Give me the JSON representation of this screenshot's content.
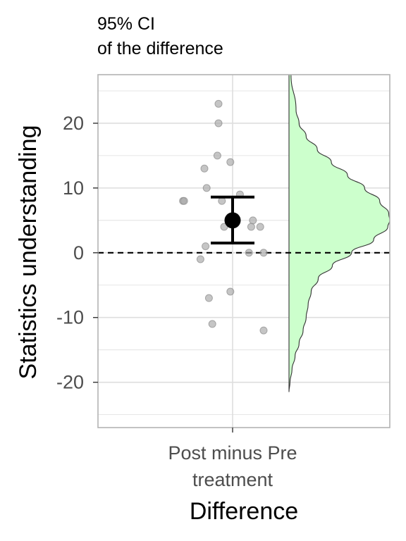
{
  "chart_data": {
    "type": "scatter",
    "title_lines": [
      "95% CI",
      "of the difference"
    ],
    "xlabel": "Difference",
    "ylabel": "Statistics understanding",
    "x_category_lines": [
      "Post minus Pre",
      "treatment"
    ],
    "ylim": [
      -27,
      27.5
    ],
    "y_ticks": [
      -20,
      -10,
      0,
      10,
      20
    ],
    "y_tick_labels": [
      "-20",
      "-10",
      "0",
      "10",
      "20"
    ],
    "grid": true,
    "reference_line": 0,
    "points": [
      {
        "x": -0.25,
        "y": 23
      },
      {
        "x": -0.25,
        "y": 20
      },
      {
        "x": -0.27,
        "y": 15
      },
      {
        "x": -0.04,
        "y": 14
      },
      {
        "x": -0.5,
        "y": 13
      },
      {
        "x": -0.46,
        "y": 10
      },
      {
        "x": 0.13,
        "y": 9
      },
      {
        "x": -0.88,
        "y": 8
      },
      {
        "x": -0.86,
        "y": 8
      },
      {
        "x": -0.19,
        "y": 8
      },
      {
        "x": 0.36,
        "y": 5
      },
      {
        "x": -0.15,
        "y": 4
      },
      {
        "x": 0.33,
        "y": 4
      },
      {
        "x": 0.49,
        "y": 4
      },
      {
        "x": -0.48,
        "y": 1
      },
      {
        "x": 0.29,
        "y": 0
      },
      {
        "x": 0.55,
        "y": 0
      },
      {
        "x": -0.57,
        "y": -1
      },
      {
        "x": -0.04,
        "y": -6
      },
      {
        "x": -0.42,
        "y": -7
      },
      {
        "x": -0.36,
        "y": -11
      },
      {
        "x": 0.55,
        "y": -12
      }
    ],
    "estimate": {
      "mean": 5,
      "ci_lower": 1.5,
      "ci_upper": 8.6
    },
    "density": {
      "y": [
        27.5,
        22,
        20,
        18,
        16,
        14,
        12,
        10,
        8,
        6,
        5,
        4,
        2,
        0,
        -2,
        -4,
        -6,
        -8,
        -10,
        -12,
        -14,
        -16,
        -18,
        -20,
        -21.5
      ],
      "d": [
        0.02,
        0.07,
        0.1,
        0.17,
        0.28,
        0.42,
        0.58,
        0.75,
        0.9,
        0.99,
        1.0,
        0.98,
        0.84,
        0.62,
        0.43,
        0.29,
        0.22,
        0.19,
        0.17,
        0.14,
        0.1,
        0.06,
        0.03,
        0.01,
        0.0
      ]
    },
    "colors": {
      "points": "#a6a6a6",
      "density_fill": "#ccffcc",
      "estimate": "#000000",
      "grid": "#dedede",
      "panel_border": "#b3b3b3"
    }
  }
}
